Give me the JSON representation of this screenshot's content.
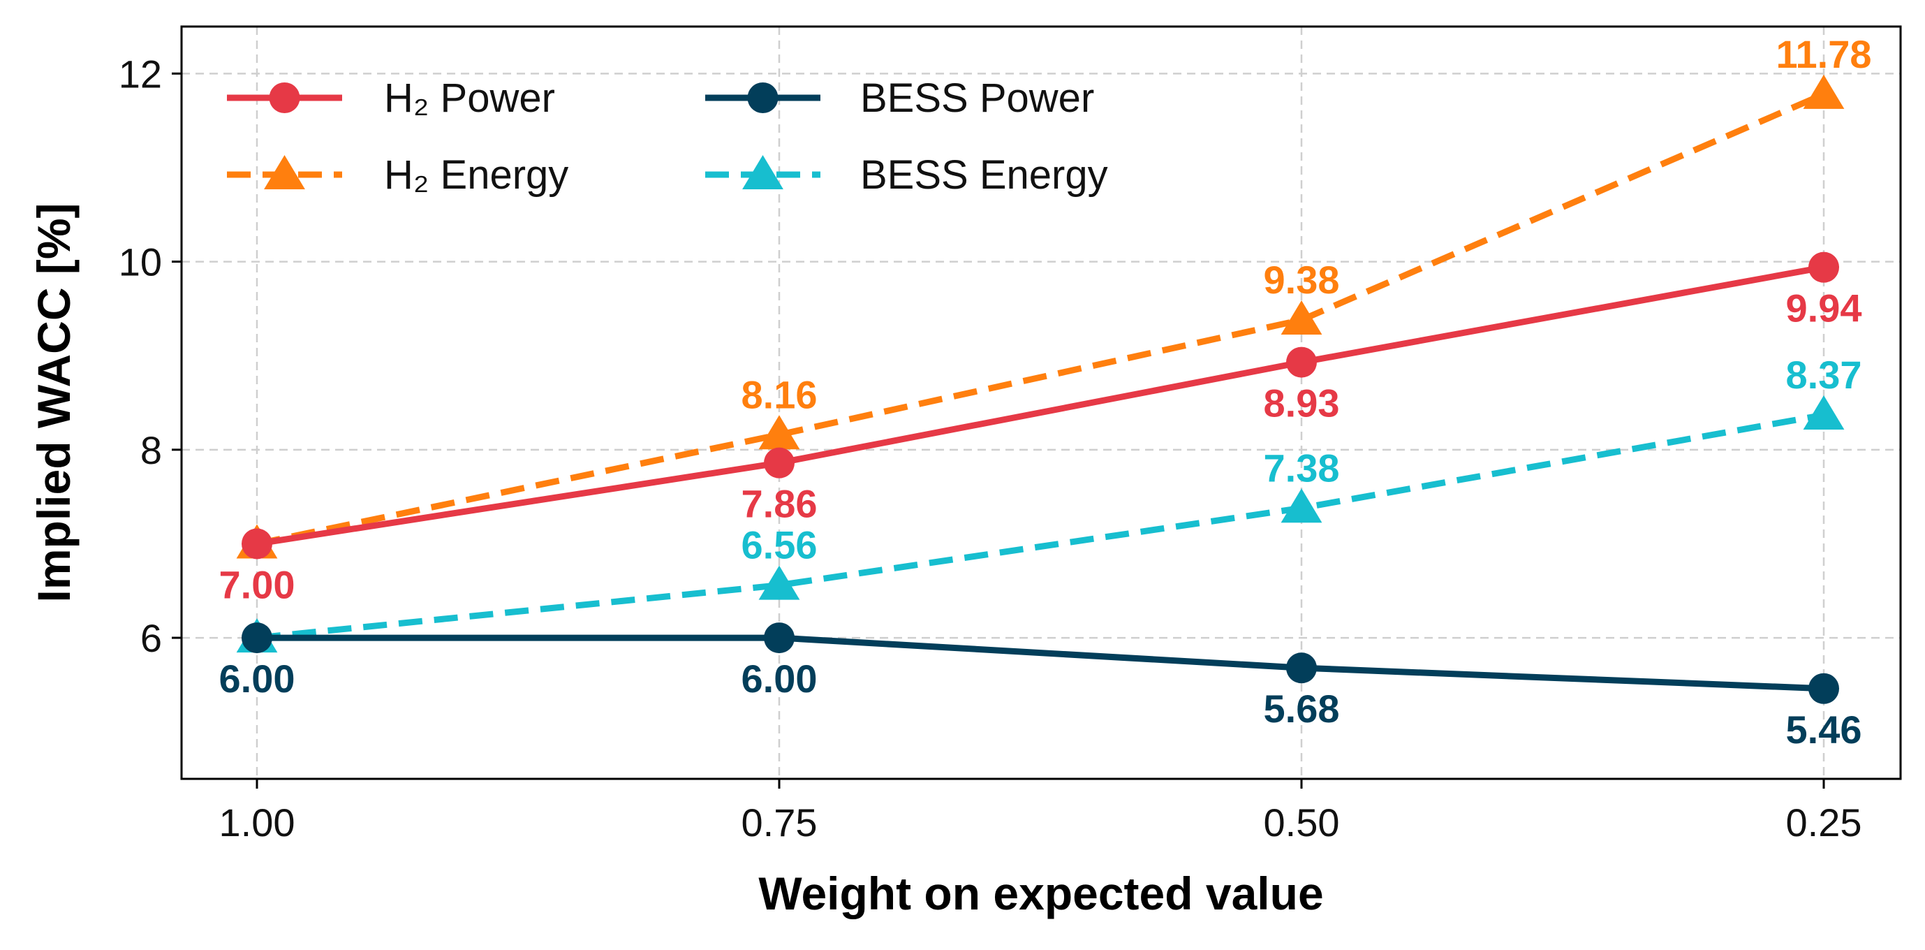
{
  "chart_data": {
    "type": "line",
    "xlabel": "Weight on expected value",
    "ylabel": "Implied WACC [%]",
    "x": [
      1.0,
      0.75,
      0.5,
      0.25
    ],
    "x_tick_labels": [
      "1.00",
      "0.75",
      "0.50",
      "0.25"
    ],
    "x_axis_reversed": true,
    "ylim": [
      4.5,
      12.5
    ],
    "y_ticks": [
      6,
      8,
      10,
      12
    ],
    "y_tick_labels": [
      "6",
      "8",
      "10",
      "12"
    ],
    "grid": true,
    "legend_placement": "top-left",
    "series": [
      {
        "name": "H₂ Power",
        "values": [
          7.0,
          7.86,
          8.93,
          9.94
        ],
        "value_labels": [
          "7.00",
          "7.86",
          "8.93",
          "9.94"
        ],
        "label_position": "below",
        "color": "#e63946",
        "line_style": "solid",
        "marker": "circle"
      },
      {
        "name": "H₂ Energy",
        "values": [
          7.0,
          8.16,
          9.38,
          11.78
        ],
        "value_labels": [
          "",
          "8.16",
          "9.38",
          "11.78"
        ],
        "label_position": "above",
        "color": "#ff7f0e",
        "line_style": "dashed",
        "marker": "triangle"
      },
      {
        "name": "BESS Power",
        "values": [
          6.0,
          6.0,
          5.68,
          5.46
        ],
        "value_labels": [
          "6.00",
          "6.00",
          "5.68",
          "5.46"
        ],
        "label_position": "below",
        "color": "#023e5a",
        "line_style": "solid",
        "marker": "circle"
      },
      {
        "name": "BESS Energy",
        "values": [
          6.0,
          6.56,
          7.38,
          8.37
        ],
        "value_labels": [
          "",
          "6.56",
          "7.38",
          "8.37"
        ],
        "label_position": "above",
        "color": "#17becf",
        "line_style": "dashed",
        "marker": "triangle"
      }
    ]
  }
}
